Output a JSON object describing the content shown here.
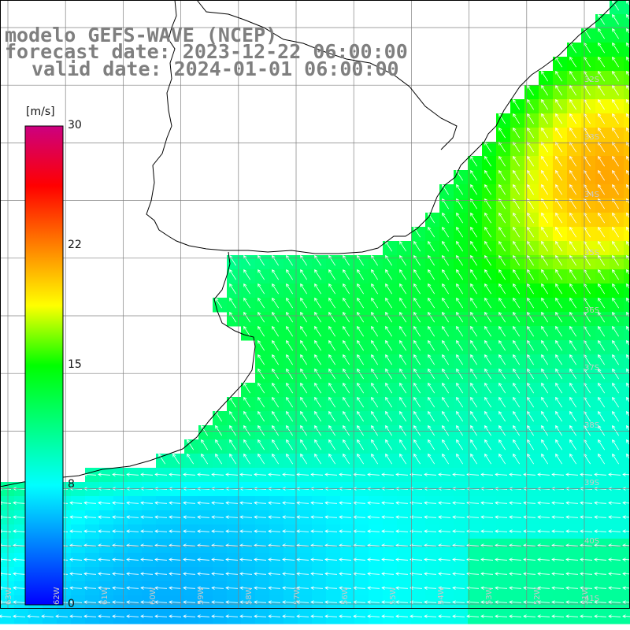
{
  "title": {
    "line1": "modelo GEFS-WAVE (NCEP)",
    "line2": "forecast date: 2023-12-22 06:00:00",
    "line3": "valid date: 2024-01-01 06:00:00"
  },
  "colorbar": {
    "unit": "[m/s]",
    "ticks": [
      "30",
      "22",
      "15",
      "8",
      "0"
    ],
    "colors": [
      "#0000ff",
      "#0080ff",
      "#00ffff",
      "#00ff80",
      "#00ff00",
      "#ffff00",
      "#ff8000",
      "#ff0000",
      "#cc0080"
    ]
  },
  "map": {
    "field": "wind speed",
    "range_ms": [
      0,
      30
    ],
    "arrow_color": "#ffffff",
    "grid_color": "#808080",
    "coast_color": "#000000",
    "lat_labels": [
      "32S",
      "33S",
      "34S",
      "35S",
      "36S",
      "37S",
      "38S",
      "39S",
      "40S",
      "41S"
    ],
    "lon_labels": [
      "63W",
      "62W",
      "61W",
      "60W",
      "59W",
      "58W",
      "57W",
      "56W",
      "55W",
      "54W",
      "53W",
      "52W",
      "51W"
    ]
  }
}
